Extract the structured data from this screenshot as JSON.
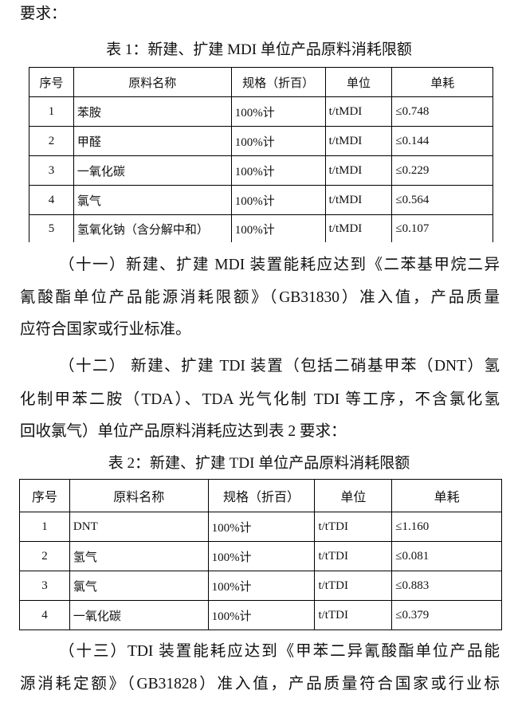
{
  "intro": "要求：",
  "table1": {
    "caption": "表 1：新建、扩建 MDI 单位产品原料消耗限额",
    "headers": [
      "序号",
      "原料名称",
      "规格（折百）",
      "单位",
      "单耗"
    ],
    "rows": [
      [
        "1",
        "苯胺",
        "100%计",
        "t/tMDI",
        "≤0.748"
      ],
      [
        "2",
        "甲醛",
        "100%计",
        "t/tMDI",
        "≤0.144"
      ],
      [
        "3",
        "一氧化碳",
        "100%计",
        "t/tMDI",
        "≤0.229"
      ],
      [
        "4",
        "氯气",
        "100%计",
        "t/tMDI",
        "≤0.564"
      ],
      [
        "5",
        "氢氧化钠（含分解中和）",
        "100%计",
        "t/tMDI",
        "≤0.107"
      ]
    ]
  },
  "para11": [
    "（十一）新建、扩建 MDI 装置能耗应达到《二苯基甲烷二异",
    "氰酸酯单位产品能源消耗限额》（GB31830）准入值，产品质量",
    "应符合国家或行业标准。"
  ],
  "para12": [
    "（十二） 新建、扩建 TDI 装置（包括二硝基甲苯（DNT）氢",
    "化制甲苯二胺（TDA）、TDA 光气化制 TDI 等工序，不含氯化氢",
    "回收氯气）单位产品原料消耗应达到表 2 要求："
  ],
  "table2": {
    "caption": "表 2：新建、扩建 TDI 单位产品原料消耗限额",
    "headers": [
      "序号",
      "原料名称",
      "规格（折百）",
      "单位",
      "单耗"
    ],
    "rows": [
      [
        "1",
        "DNT",
        "100%计",
        "t/tTDI",
        "≤1.160"
      ],
      [
        "2",
        "氢气",
        "100%计",
        "t/tTDI",
        "≤0.081"
      ],
      [
        "3",
        "氯气",
        "100%计",
        "t/tTDI",
        "≤0.883"
      ],
      [
        "4",
        "一氧化碳",
        "100%计",
        "t/tTDI",
        "≤0.379"
      ]
    ]
  },
  "para13": [
    "（十三）TDI 装置能耗应达到《甲苯二异氰酸酯单位产品能",
    "源消耗定额》（GB31828）准入值，产品质量符合国家或行业标"
  ]
}
